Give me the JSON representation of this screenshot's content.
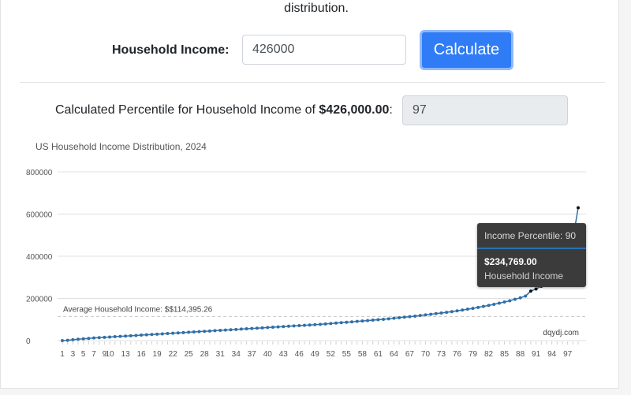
{
  "intro": {
    "tail_text": "distribution."
  },
  "form": {
    "income_label": "Household Income:",
    "income_value": "426000",
    "calculate_label": "Calculate"
  },
  "result": {
    "label_prefix": "Calculated Percentile for Household Income of ",
    "label_amount": "$426,000.00",
    "label_suffix": ":",
    "percentile_value": "97"
  },
  "chart": {
    "title": "US Household Income Distribution, 2024",
    "average_label": "Average Household Income: $$114,395.26",
    "watermark": "dqydj.com",
    "tooltip": {
      "header": "Income Percentile: 90",
      "value": "$234,769.00",
      "series": "Household Income"
    }
  },
  "colors": {
    "accent": "#2f7cf6",
    "series": "#2f6fa7",
    "highlight_series": "#111111",
    "tooltip_bg": "#3b3b3b"
  },
  "chart_data": {
    "type": "line",
    "title": "US Household Income Distribution, 2024",
    "xlabel": "",
    "ylabel": "",
    "ylim": [
      0,
      800000
    ],
    "yticks": [
      0,
      200000,
      400000,
      600000,
      800000
    ],
    "ytick_labels": [
      "0",
      "200000",
      "400000",
      "600000",
      "800000"
    ],
    "xtick_labels": [
      "1",
      "3",
      "5",
      "7",
      "9",
      "10",
      "13",
      "16",
      "19",
      "22",
      "25",
      "28",
      "31",
      "34",
      "37",
      "40",
      "43",
      "46",
      "49",
      "52",
      "55",
      "58",
      "61",
      "64",
      "67",
      "70",
      "73",
      "76",
      "79",
      "82",
      "85",
      "88",
      "91",
      "94",
      "97"
    ],
    "reference_line": {
      "value": 114395.26,
      "label": "Average Household Income: $$114,395.26"
    },
    "highlight_from_percentile": 90,
    "series": [
      {
        "name": "Household Income",
        "x": [
          1,
          2,
          3,
          4,
          5,
          6,
          7,
          8,
          9,
          10,
          11,
          12,
          13,
          14,
          15,
          16,
          17,
          18,
          19,
          20,
          21,
          22,
          23,
          24,
          25,
          26,
          27,
          28,
          29,
          30,
          31,
          32,
          33,
          34,
          35,
          36,
          37,
          38,
          39,
          40,
          41,
          42,
          43,
          44,
          45,
          46,
          47,
          48,
          49,
          50,
          51,
          52,
          53,
          54,
          55,
          56,
          57,
          58,
          59,
          60,
          61,
          62,
          63,
          64,
          65,
          66,
          67,
          68,
          69,
          70,
          71,
          72,
          73,
          74,
          75,
          76,
          77,
          78,
          79,
          80,
          81,
          82,
          83,
          84,
          85,
          86,
          87,
          88,
          89,
          90,
          91,
          92,
          93,
          94,
          95,
          96,
          97,
          98,
          99
        ],
        "values": [
          0,
          1500,
          4000,
          6500,
          8500,
          10500,
          12500,
          14000,
          15500,
          17000,
          18500,
          20000,
          21500,
          23000,
          24500,
          26000,
          27500,
          29000,
          30500,
          32000,
          33500,
          35000,
          36500,
          38000,
          39500,
          41000,
          42500,
          44000,
          45500,
          47000,
          48500,
          50000,
          51500,
          53000,
          54500,
          56000,
          57500,
          59000,
          60500,
          62000,
          63500,
          65000,
          66500,
          68000,
          69500,
          71000,
          72500,
          74000,
          75500,
          77000,
          79000,
          81000,
          83000,
          85000,
          87000,
          89000,
          91000,
          93000,
          95000,
          97000,
          99000,
          101000,
          103500,
          106000,
          108500,
          111000,
          113500,
          116000,
          119000,
          122000,
          125000,
          128000,
          131000,
          134000,
          137500,
          141000,
          145000,
          149000,
          153000,
          157500,
          162000,
          167000,
          172000,
          177500,
          183000,
          189000,
          196000,
          203000,
          211000,
          234769,
          245000,
          258000,
          273000,
          290000,
          313000,
          345000,
          395000,
          480000,
          630000
        ]
      }
    ]
  }
}
